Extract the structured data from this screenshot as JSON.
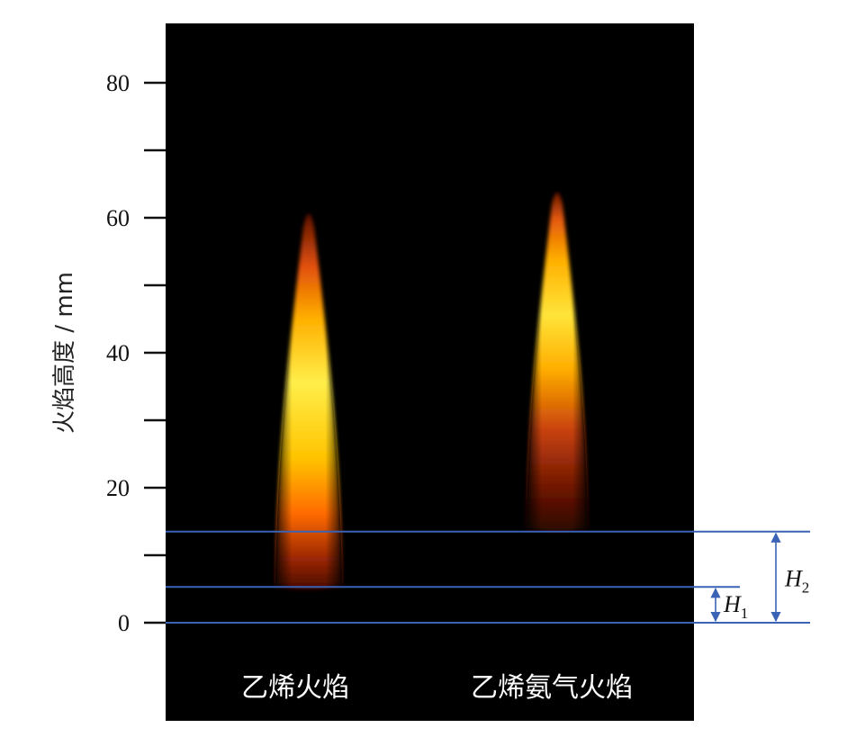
{
  "axis": {
    "title": "火焰高度 / mm",
    "unit": "mm",
    "range": [
      0,
      80
    ],
    "labeled_ticks": [
      0,
      20,
      40,
      60,
      80
    ],
    "minor_ticks": [
      10,
      30,
      50,
      70
    ]
  },
  "flames": [
    {
      "caption": "乙烯火焰",
      "base_mm": 5.5,
      "tip_mm": 62
    },
    {
      "caption": "乙烯氨气火焰",
      "base_mm": 14,
      "tip_mm": 65
    }
  ],
  "reference_lines": [
    {
      "name": "base",
      "value_mm": 0
    },
    {
      "name": "h1-top",
      "value_mm": 5.3
    },
    {
      "name": "h2-top",
      "value_mm": 13.5
    }
  ],
  "heights": {
    "H1": {
      "letter": "H",
      "sub": "1",
      "from_mm": 0,
      "to_mm": 5.3
    },
    "H2": {
      "letter": "H",
      "sub": "2",
      "from_mm": 0,
      "to_mm": 13.5
    }
  },
  "colors": {
    "background": "#000000",
    "reference_line": "#3b63b5",
    "flame_core": "#fff06a",
    "flame_mid": "#ffb400",
    "flame_outer": "#d84a0a",
    "flame_dark": "#6a1404",
    "caption": "#ffffff"
  }
}
